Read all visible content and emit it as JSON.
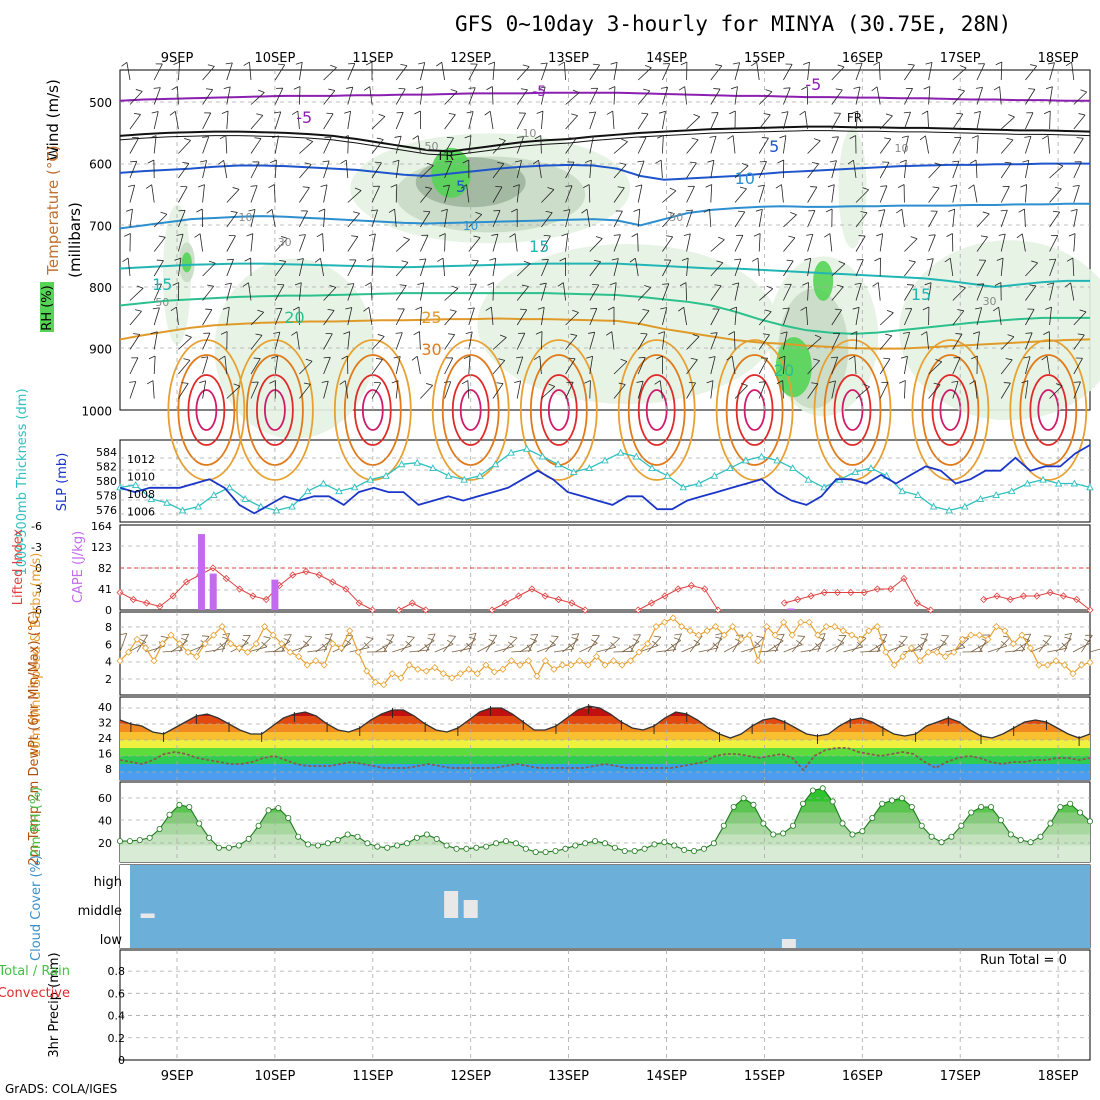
{
  "header": {
    "title": "GFS 0~10day 3-hourly for MINYA (30.75E, 28N)",
    "credit": "GrADS: COLA/IGES"
  },
  "colors": {
    "rh_light": "#e4f3e2",
    "rh_mid": "#c9dcc6",
    "rh_dark": "#9fb59d",
    "rh_green": "#55d455",
    "temp_minus5": "#8a1fb0",
    "temp_0": "#111111",
    "temp_5": "#1e55cc",
    "temp_10": "#2d8fd0",
    "temp_15": "#22b5b5",
    "temp_20": "#2cc08c",
    "temp_25": "#e09a2a",
    "temp_30": "#e07a1a",
    "temp_35": "#e02a2a",
    "thickness": "#30c0c0",
    "slp": "#1a36c8",
    "lifted": "#e04040",
    "cape": "#c36bf0",
    "speed": "#e8a030",
    "cloud": "#6cafd8",
    "rh2m": "#44c044"
  },
  "chart_data": [
    {
      "type": "heatmap",
      "name": "upper_air_cross_section",
      "ylabel": "(millibars)",
      "legend_labels": [
        "RH (%)",
        "Temperature (°C)",
        "Wind (m/s)"
      ],
      "y_ticks": [
        500,
        600,
        700,
        800,
        900,
        1000
      ],
      "date_ticks": [
        "9SEP",
        "10SEP",
        "11SEP",
        "12SEP",
        "13SEP",
        "14SEP",
        "15SEP",
        "16SEP",
        "17SEP",
        "18SEP"
      ],
      "contour_labels": [
        "-5",
        "-5",
        "-5",
        "FR",
        "FR",
        "5",
        "5",
        "10",
        "10",
        "15",
        "15",
        "15",
        "20",
        "20",
        "25",
        "30",
        "50",
        "50",
        "10",
        "10",
        "30",
        "30",
        "50",
        "10"
      ],
      "isotherms_mb": {
        "minus5": [
          498,
          496,
          495,
          494,
          493,
          492,
          491,
          490,
          490,
          490,
          489,
          489,
          488,
          488,
          487,
          486,
          486,
          486,
          485,
          485,
          485,
          485,
          486,
          487,
          488,
          489,
          490,
          490,
          491,
          492,
          492,
          493,
          493,
          494,
          494,
          495,
          496,
          496,
          497,
          497,
          498,
          498
        ],
        "fr": [
          555,
          552,
          550,
          549,
          548,
          548,
          549,
          550,
          552,
          555,
          560,
          566,
          572,
          578,
          580,
          575,
          570,
          565,
          562,
          560,
          556,
          553,
          550,
          548,
          546,
          544,
          543,
          542,
          541,
          540,
          540,
          541,
          541,
          542,
          542,
          543,
          544,
          545,
          546,
          546,
          547,
          548
        ],
        "t5": [
          615,
          612,
          610,
          608,
          605,
          603,
          603,
          604,
          606,
          608,
          610,
          614,
          618,
          620,
          616,
          612,
          608,
          605,
          603,
          602,
          603,
          608,
          620,
          626,
          624,
          622,
          620,
          617,
          614,
          612,
          610,
          608,
          606,
          604,
          603,
          602,
          602,
          601,
          601,
          600,
          600,
          600
        ],
        "t10": [
          705,
          700,
          695,
          690,
          688,
          686,
          685,
          686,
          688,
          690,
          692,
          694,
          696,
          697,
          696,
          695,
          694,
          693,
          692,
          691,
          690,
          692,
          700,
          690,
          680,
          675,
          672,
          670,
          669,
          670,
          670,
          669,
          669,
          668,
          668,
          668,
          667,
          667,
          666,
          666,
          665,
          665
        ],
        "t15": [
          770,
          768,
          766,
          764,
          763,
          762,
          762,
          763,
          764,
          765,
          766,
          767,
          768,
          767,
          766,
          765,
          764,
          763,
          762,
          762,
          762,
          762,
          764,
          766,
          768,
          770,
          770,
          772,
          774,
          776,
          778,
          780,
          782,
          784,
          786,
          790,
          795,
          800,
          796,
          792,
          790,
          790
        ],
        "t20": [
          830,
          826,
          822,
          820,
          818,
          816,
          815,
          814,
          814,
          813,
          812,
          811,
          810,
          810,
          810,
          810,
          810,
          810,
          810,
          811,
          812,
          813,
          816,
          820,
          824,
          830,
          840,
          852,
          862,
          870,
          874,
          876,
          874,
          870,
          866,
          862,
          858,
          855,
          852,
          850,
          850,
          850
        ],
        "t25": [
          885,
          878,
          872,
          866,
          862,
          860,
          858,
          857,
          856,
          856,
          855,
          854,
          854,
          853,
          852,
          852,
          851,
          852,
          852,
          853,
          854,
          855,
          860,
          868,
          874,
          880,
          886,
          890,
          892,
          895,
          897,
          899,
          900,
          900,
          898,
          896,
          894,
          892,
          890,
          888,
          886,
          885
        ]
      },
      "hot_cores_date": [
        "9.3",
        "10.0",
        "11.0",
        "12.0",
        "12.9",
        "13.9",
        "14.9",
        "15.9",
        "16.9",
        "17.9"
      ]
    },
    {
      "type": "line",
      "name": "thickness_and_slp",
      "ylabel": "1000-500mb Thickness (dm)",
      "ylabel2": "SLP (mb)",
      "y_ticks_left": [
        "584",
        "582",
        "580",
        "578",
        "576"
      ],
      "y_ticks_right": [
        "1012",
        "1010",
        "1008",
        "1006"
      ],
      "series": [
        {
          "name": "1000-500mb Thickness (dm)",
          "values": [
            579.5,
            579.8,
            578,
            577.5,
            576.5,
            577,
            578.5,
            579.5,
            578,
            577,
            576.5,
            577,
            579,
            580,
            579,
            579.5,
            580.5,
            581,
            582.5,
            582.7,
            582,
            581,
            580.5,
            581,
            582.5,
            584,
            584.5,
            583.5,
            582.5,
            581.5,
            582,
            583,
            584,
            583.5,
            582,
            581,
            579.5,
            580,
            581,
            582,
            583,
            583.5,
            583,
            582,
            580.5,
            579.5,
            580.5,
            581.5,
            582,
            581,
            579,
            578.5,
            577,
            576.5,
            577,
            578,
            578.5,
            579,
            580,
            580.5,
            580,
            580,
            579.5
          ]
        },
        {
          "name": "SLP (mb)",
          "values": [
            1009,
            1008.5,
            1009,
            1009,
            1009,
            1009.5,
            1010,
            1009,
            1007,
            1006,
            1007,
            1008,
            1007.5,
            1008,
            1008,
            1007,
            1008.5,
            1009,
            1008.5,
            1008.5,
            1007,
            1007.5,
            1008,
            1007.5,
            1008,
            1008.5,
            1009,
            1010,
            1011,
            1010,
            1008.5,
            1008,
            1007.5,
            1007,
            1008,
            1008,
            1006.5,
            1006.5,
            1007.5,
            1008,
            1008.5,
            1009,
            1009.5,
            1010,
            1008.5,
            1007.5,
            1007,
            1008,
            1010,
            1010,
            1009.5,
            1010.5,
            1009.5,
            1010.5,
            1011.5,
            1011,
            1009.5,
            1010,
            1011,
            1011,
            1012.5,
            1011,
            1011.5,
            1011.5,
            1013,
            1014
          ]
        }
      ]
    },
    {
      "type": "bar",
      "name": "lifted_index_and_cape",
      "ylabel": "Lifted Index",
      "ylabel2": "CAPE (J/kg)",
      "y_ticks_left": [
        "-6",
        "-3",
        "0",
        "3",
        "6"
      ],
      "y_ticks_right": [
        "164",
        "123",
        "82",
        "41",
        "0"
      ],
      "series": [
        {
          "name": "Lifted Index",
          "values": [
            3.5,
            4.5,
            5,
            5.5,
            4,
            2,
            1,
            0,
            1.5,
            3,
            4,
            4.5,
            2.5,
            1,
            0.5,
            1,
            2,
            3,
            5,
            6,
            null,
            6,
            5,
            6,
            null,
            null,
            null,
            null,
            6,
            5,
            4,
            3,
            4,
            4.5,
            5,
            6,
            null,
            null,
            null,
            6,
            5,
            4,
            3,
            2.5,
            3,
            6,
            null,
            null,
            null,
            null,
            5,
            4.5,
            4,
            3.5,
            3.5,
            3.5,
            3.5,
            3,
            3,
            1.5,
            5,
            6,
            null,
            null,
            null,
            4.5,
            4,
            4.5,
            4,
            4,
            3.5,
            4,
            4.5,
            6
          ]
        },
        {
          "name": "CAPE (J/kg)",
          "values": [
            {
              "date": 9.25,
              "value": 150
            },
            {
              "date": 9.37,
              "value": 72
            },
            {
              "date": 10.0,
              "value": 60
            },
            {
              "date": 15.27,
              "value": 3
            }
          ]
        }
      ]
    },
    {
      "type": "line",
      "name": "wind_10m",
      "ylabel": "10m Wind Speed & Barbs (m/s)",
      "y_ticks": [
        "8",
        "6",
        "4",
        "2"
      ],
      "series": [
        {
          "name": "10m Wind Speed",
          "values": [
            4,
            5,
            6.5,
            5.5,
            4,
            6,
            7,
            6,
            5,
            4.5,
            6,
            7,
            8,
            6,
            5.5,
            5,
            6,
            8,
            7,
            6,
            5,
            4.5,
            3.5,
            4,
            3.5,
            6,
            5.5,
            7.5,
            5,
            2.8,
            1.5,
            1.2,
            2.5,
            2,
            3.5,
            3,
            2.8,
            3.2,
            2.5,
            2,
            2.5,
            3,
            2.5,
            3.5,
            2.7,
            3,
            4,
            3.5,
            4,
            2.2,
            4,
            3,
            3.5,
            3.5,
            4,
            3.5,
            4.5,
            3.5,
            4,
            3.5,
            4,
            5,
            6,
            8,
            8.5,
            9,
            8,
            7.5,
            7,
            7.5,
            8,
            7,
            8,
            6.5,
            7,
            4,
            8,
            7,
            8.5,
            7,
            8.5,
            8.5,
            7,
            8,
            8,
            7.5,
            7,
            6.5,
            7.5,
            8,
            5,
            3.5,
            4.5,
            5.5,
            4,
            5,
            5,
            4.5,
            5,
            6.5,
            7,
            7,
            6.5,
            8,
            7.5,
            6,
            7,
            5.5,
            3.5,
            3.5,
            4,
            3.5,
            2.5,
            3.5,
            3.8
          ]
        }
      ]
    },
    {
      "type": "area",
      "name": "temp_2m_and_dewpoint",
      "ylabel": "2m Temp 2m DewPt (6hr Min/Max) (°C)",
      "y_ticks": [
        "40",
        "32",
        "24",
        "16",
        "8"
      ],
      "series": [
        {
          "name": "2m Temp",
          "values": [
            34,
            32,
            31,
            28,
            27,
            30,
            33,
            36,
            37,
            35,
            32,
            29,
            27,
            27,
            31,
            35,
            37,
            38,
            36,
            32,
            29,
            28,
            30,
            34,
            37,
            39,
            39,
            36,
            32,
            29,
            28,
            30,
            34,
            38,
            40,
            40,
            37,
            33,
            29,
            29,
            31,
            35,
            39,
            41,
            40,
            37,
            33,
            30,
            29,
            31,
            35,
            38,
            37,
            34,
            30,
            27,
            25,
            27,
            31,
            34,
            35,
            33,
            30,
            27,
            26,
            27,
            31,
            34,
            35,
            33,
            30,
            27,
            26,
            27,
            31,
            33,
            35,
            33,
            29,
            26,
            25,
            27,
            30,
            33,
            34,
            33,
            30,
            27,
            25,
            27
          ]
        },
        {
          "name": "2m DewPt",
          "values": [
            14,
            13,
            12,
            14,
            17,
            18,
            17,
            15,
            14,
            13,
            12,
            12,
            13,
            15,
            16,
            14,
            12,
            11,
            11,
            11,
            12,
            13,
            12,
            11,
            10,
            10,
            10,
            11,
            12,
            11,
            10,
            10,
            10,
            10,
            10,
            11,
            12,
            11,
            10,
            10,
            10,
            10,
            10,
            11,
            12,
            11,
            10,
            10,
            10,
            10,
            10,
            11,
            12,
            13,
            16,
            17,
            17,
            16,
            15,
            16,
            17,
            15,
            9,
            16,
            19,
            20,
            20,
            18,
            17,
            16,
            17,
            18,
            17,
            13,
            10,
            13,
            15,
            16,
            15,
            13,
            12,
            13,
            13,
            14,
            14,
            15,
            15,
            14,
            15
          ]
        }
      ]
    },
    {
      "type": "area",
      "name": "rh_2m",
      "ylabel": "2m RH (%)",
      "y_ticks": [
        "60",
        "40",
        "20"
      ],
      "series": [
        {
          "name": "2m RH",
          "values": [
            24,
            24,
            25,
            27,
            35,
            48,
            57,
            55,
            40,
            27,
            18,
            18,
            20,
            26,
            38,
            52,
            54,
            45,
            28,
            21,
            20,
            22,
            25,
            30,
            28,
            22,
            19,
            18,
            20,
            22,
            27,
            30,
            26,
            20,
            17,
            17,
            18,
            19,
            22,
            24,
            22,
            17,
            14,
            14,
            15,
            17,
            20,
            22,
            24,
            22,
            18,
            15,
            15,
            17,
            21,
            23,
            20,
            16,
            15,
            17,
            22,
            38,
            55,
            63,
            57,
            40,
            30,
            31,
            38,
            58,
            70,
            72,
            60,
            40,
            30,
            33,
            45,
            58,
            61,
            63,
            55,
            38,
            28,
            23,
            28,
            38,
            50,
            55,
            55,
            43,
            30,
            25,
            23,
            28,
            40,
            55,
            58,
            50,
            42
          ]
        }
      ]
    },
    {
      "type": "bar",
      "name": "cloud_cover",
      "ylabel": "Cloud Cover (%)",
      "y_categories": [
        "high",
        "middle",
        "low"
      ],
      "series": [
        {
          "name": "middle",
          "values": [
            {
              "date": 8.7,
              "value": 5
            },
            {
              "date": 11.8,
              "value": 30
            },
            {
              "date": 12.0,
              "value": 20
            }
          ]
        },
        {
          "name": "low",
          "values": [
            {
              "date": 15.25,
              "value": 10
            }
          ]
        }
      ]
    },
    {
      "type": "bar",
      "name": "precip_3hr",
      "ylabel": "3hr Precip (mm)",
      "legend_labels": [
        "Total / Rain",
        "Convective"
      ],
      "y_ticks": [
        "0.8",
        "0.6",
        "0.4",
        "0.2",
        "0"
      ],
      "ylim": [
        0,
        1
      ],
      "run_total": "Run Total = 0",
      "series": [
        {
          "name": "Total / Rain",
          "values": []
        },
        {
          "name": "Convective",
          "values": []
        }
      ]
    }
  ]
}
